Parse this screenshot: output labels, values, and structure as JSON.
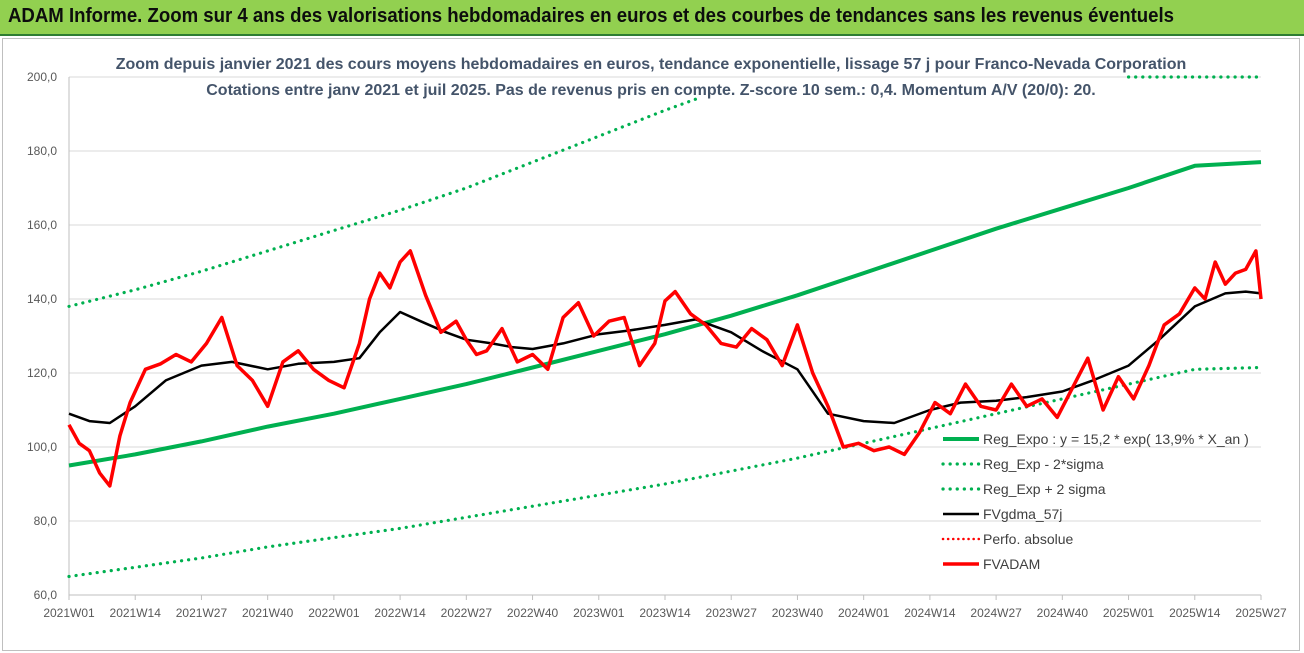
{
  "header": {
    "title": "ADAM Informe. Zoom sur 4 ans des valorisations hebdomadaires en euros et des courbes de tendances sans les revenus éventuels"
  },
  "chart_data": {
    "type": "line",
    "title": "Zoom depuis janvier 2021 des cours moyens hebdomadaires en euros, tendance exponentielle, lissage 57 j pour Franco-Nevada Corporation",
    "subtitle": "Cotations entre janv 2021 et juil 2025. Pas de revenus pris en compte. Z-score 10 sem.: 0,4. Momentum A/V (20/0): 20.",
    "xlabel": "",
    "ylabel": "",
    "ylim": [
      60,
      200
    ],
    "y_ticks": [
      "60,0",
      "80,0",
      "100,0",
      "120,0",
      "140,0",
      "160,0",
      "180,0",
      "200,0"
    ],
    "x_tick_labels": [
      "2021W01",
      "2021W14",
      "2021W27",
      "2021W40",
      "2022W01",
      "2022W14",
      "2022W27",
      "2022W40",
      "2023W01",
      "2023W14",
      "2023W27",
      "2023W40",
      "2024W01",
      "2024W14",
      "2024W27",
      "2024W40",
      "2025W01",
      "2025W14",
      "2025W27"
    ],
    "grid": true,
    "legend_position": "bottom-right",
    "colors": {
      "trend": "#00b050",
      "bands": "#00b050",
      "moving_average": "#000000",
      "perf": "#ff0000",
      "price": "#ff0000",
      "header_bg": "#92d050",
      "title_text": "#44546a"
    },
    "series": [
      {
        "name": "Reg_Expo : y = 15,2 * exp( 13,9% * X_an )",
        "style": "solid-thick",
        "x": [
          "2021W01",
          "2021W14",
          "2021W27",
          "2021W40",
          "2022W01",
          "2022W14",
          "2022W27",
          "2022W40",
          "2023W01",
          "2023W14",
          "2023W27",
          "2023W40",
          "2024W01",
          "2024W14",
          "2024W27",
          "2024W40",
          "2025W01",
          "2025W14",
          "2025W27"
        ],
        "values": [
          95.0,
          98.0,
          101.5,
          105.5,
          109.0,
          113.0,
          117.0,
          121.5,
          126.0,
          130.5,
          135.5,
          141.0,
          147.0,
          153.0,
          159.0,
          164.5,
          170.0,
          176.0,
          177.0
        ]
      },
      {
        "name": "Reg_Exp - 2*sigma",
        "style": "dotted",
        "x": [
          "2021W01",
          "2021W14",
          "2021W27",
          "2021W40",
          "2022W01",
          "2022W14",
          "2022W27",
          "2022W40",
          "2023W01",
          "2023W14",
          "2023W27",
          "2023W40",
          "2024W01",
          "2024W14",
          "2024W27",
          "2024W40",
          "2025W01",
          "2025W14",
          "2025W27"
        ],
        "values": [
          65.0,
          67.5,
          70.0,
          73.0,
          75.5,
          78.0,
          81.0,
          84.0,
          87.0,
          90.0,
          93.5,
          97.0,
          101.0,
          105.0,
          109.0,
          113.0,
          117.0,
          121.0,
          121.5
        ]
      },
      {
        "name": "Reg_Exp + 2 sigma",
        "style": "dotted",
        "x": [
          "2021W01",
          "2021W14",
          "2021W27",
          "2021W40",
          "2022W01",
          "2022W14",
          "2022W27",
          "2022W40",
          "2023W01",
          "2023W14",
          "2023W20"
        ],
        "values": [
          138.0,
          142.5,
          147.5,
          153.0,
          158.5,
          164.0,
          170.0,
          177.0,
          184.0,
          191.0,
          194.0
        ]
      },
      {
        "name": "FVgdma_57j",
        "style": "solid",
        "x": [
          "2021W01",
          "2021W05",
          "2021W09",
          "2021W14",
          "2021W20",
          "2021W27",
          "2021W33",
          "2021W40",
          "2021W46",
          "2022W01",
          "2022W06",
          "2022W10",
          "2022W14",
          "2022W18",
          "2022W23",
          "2022W27",
          "2022W32",
          "2022W36",
          "2022W40",
          "2022W46",
          "2023W01",
          "2023W07",
          "2023W14",
          "2023W20",
          "2023W27",
          "2023W33",
          "2023W40",
          "2023W46",
          "2024W01",
          "2024W07",
          "2024W14",
          "2024W20",
          "2024W27",
          "2024W33",
          "2024W40",
          "2024W46",
          "2025W01",
          "2025W07",
          "2025W14",
          "2025W20",
          "2025W24",
          "2025W27"
        ],
        "values": [
          109,
          107,
          106.5,
          111,
          118,
          122,
          123,
          121,
          122.5,
          123,
          124,
          131,
          136.5,
          134,
          131,
          129,
          128,
          127,
          126.5,
          128,
          130.5,
          131.5,
          133,
          134.5,
          131,
          126,
          121,
          109,
          107,
          106.5,
          110,
          112,
          112.5,
          113.5,
          115,
          118,
          122,
          129,
          138,
          141.5,
          142,
          141.5
        ]
      },
      {
        "name": "Perfo. absolue",
        "style": "dotted",
        "x": [],
        "values": []
      },
      {
        "name": "FVADAM",
        "style": "solid-thick",
        "x": [
          "2021W01",
          "2021W03",
          "2021W05",
          "2021W07",
          "2021W09",
          "2021W11",
          "2021W13",
          "2021W16",
          "2021W19",
          "2021W22",
          "2021W25",
          "2021W28",
          "2021W31",
          "2021W34",
          "2021W37",
          "2021W40",
          "2021W43",
          "2021W46",
          "2021W49",
          "2021W52",
          "2022W03",
          "2022W06",
          "2022W08",
          "2022W10",
          "2022W12",
          "2022W14",
          "2022W16",
          "2022W19",
          "2022W22",
          "2022W25",
          "2022W27",
          "2022W29",
          "2022W31",
          "2022W34",
          "2022W37",
          "2022W40",
          "2022W43",
          "2022W46",
          "2022W49",
          "2022W52",
          "2023W03",
          "2023W06",
          "2023W09",
          "2023W12",
          "2023W14",
          "2023W16",
          "2023W19",
          "2023W22",
          "2023W25",
          "2023W28",
          "2023W31",
          "2023W34",
          "2023W37",
          "2023W40",
          "2023W43",
          "2023W46",
          "2023W49",
          "2023W52",
          "2024W03",
          "2024W06",
          "2024W09",
          "2024W12",
          "2024W15",
          "2024W18",
          "2024W21",
          "2024W24",
          "2024W27",
          "2024W30",
          "2024W33",
          "2024W36",
          "2024W39",
          "2024W42",
          "2024W45",
          "2024W48",
          "2024W51",
          "2025W02",
          "2025W05",
          "2025W08",
          "2025W11",
          "2025W14",
          "2025W16",
          "2025W18",
          "2025W20",
          "2025W22",
          "2025W24",
          "2025W26",
          "2025W27"
        ],
        "values": [
          106,
          101,
          99,
          93,
          89.5,
          103,
          112,
          121,
          122.5,
          125,
          123,
          128,
          135,
          122,
          118,
          111,
          123,
          126,
          121,
          118,
          116,
          128,
          140,
          147,
          143,
          150,
          153,
          141,
          131,
          134,
          129,
          125,
          126,
          132,
          123,
          125,
          121,
          135,
          139,
          130,
          134,
          135,
          122,
          128,
          139.5,
          142,
          136,
          133,
          128,
          127,
          132,
          129,
          122,
          133,
          120,
          111,
          100,
          101,
          99,
          100,
          98,
          104,
          112,
          109,
          117,
          111,
          110,
          117,
          111,
          113,
          108,
          116,
          124,
          110,
          119,
          113,
          122,
          133,
          136,
          143,
          140,
          150,
          144,
          147,
          148,
          153,
          140
        ]
      }
    ]
  }
}
